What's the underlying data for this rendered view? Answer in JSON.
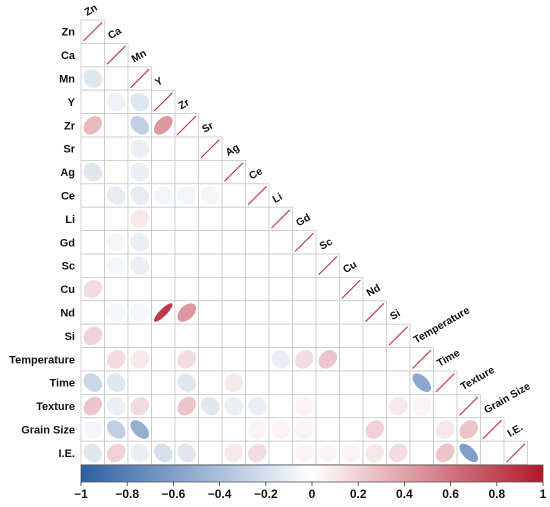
{
  "chart_data": {
    "type": "heatmap",
    "subtype": "correlation-ellipse-lower-triangle",
    "variables": [
      "Zn",
      "Ca",
      "Mn",
      "Y",
      "Zr",
      "Sr",
      "Ag",
      "Ce",
      "Li",
      "Gd",
      "Sc",
      "Cu",
      "Nd",
      "Si",
      "Temperature",
      "Time",
      "Texture",
      "Grain Size",
      "I.E."
    ],
    "diagonal_value": 1,
    "lower_triangle": [
      [],
      [
        0.0
      ],
      [
        -0.15,
        0.0
      ],
      [
        0.0,
        -0.08,
        -0.15
      ],
      [
        0.3,
        0.0,
        -0.3,
        0.45
      ],
      [
        0.0,
        0.0,
        -0.1,
        0.0,
        0.0
      ],
      [
        -0.15,
        0.0,
        -0.1,
        0.0,
        0.0,
        0.0
      ],
      [
        0.0,
        -0.12,
        -0.12,
        -0.05,
        -0.05,
        -0.05,
        0.0
      ],
      [
        0.0,
        0.0,
        0.1,
        0.0,
        0.0,
        0.0,
        0.0,
        0.0
      ],
      [
        0.0,
        -0.05,
        -0.1,
        0.0,
        0.0,
        0.0,
        0.0,
        0.0,
        0.0
      ],
      [
        0.0,
        -0.05,
        -0.1,
        0.0,
        0.0,
        0.0,
        0.0,
        0.0,
        0.0,
        0.0
      ],
      [
        0.15,
        0.0,
        0.0,
        0.0,
        0.0,
        0.0,
        0.0,
        0.0,
        0.0,
        0.0,
        0.0
      ],
      [
        0.0,
        -0.05,
        -0.05,
        0.85,
        0.45,
        0.0,
        0.0,
        0.0,
        0.0,
        0.0,
        0.0,
        0.0
      ],
      [
        0.2,
        0.0,
        0.0,
        0.0,
        0.0,
        0.0,
        0.0,
        0.0,
        0.0,
        0.0,
        0.0,
        0.0,
        0.0
      ],
      [
        0.0,
        0.15,
        0.1,
        0.0,
        0.15,
        0.0,
        0.0,
        0.0,
        -0.1,
        0.15,
        0.25,
        0.0,
        0.0,
        0.0
      ],
      [
        -0.25,
        -0.15,
        0.0,
        0.0,
        -0.15,
        0.0,
        0.1,
        0.0,
        0.0,
        0.0,
        0.0,
        0.0,
        0.0,
        0.0,
        -0.55
      ],
      [
        0.25,
        -0.1,
        0.15,
        0.0,
        0.25,
        -0.15,
        -0.1,
        -0.1,
        0.0,
        0.05,
        0.0,
        0.0,
        0.0,
        0.1,
        0.05,
        0.0
      ],
      [
        -0.05,
        -0.3,
        -0.5,
        0.0,
        0.0,
        0.0,
        0.0,
        0.05,
        0.05,
        0.05,
        0.0,
        0.0,
        0.2,
        0.0,
        0.0,
        0.1,
        0.25
      ],
      [
        -0.15,
        0.2,
        -0.1,
        -0.2,
        -0.15,
        0.0,
        0.1,
        0.15,
        0.0,
        0.05,
        0.05,
        0.05,
        0.1,
        0.15,
        0.0,
        0.25,
        -0.6,
        0.0
      ]
    ],
    "colorbar": {
      "min": -1,
      "max": 1,
      "ticks": [
        -1,
        -0.8,
        -0.6,
        -0.4,
        -0.2,
        0,
        0.2,
        0.4,
        0.6,
        0.8,
        1
      ],
      "tick_labels": [
        "−1",
        "−0.8",
        "−0.6",
        "−0.4",
        "−0.2",
        "0",
        "0.2",
        "0.4",
        "0.6",
        "0.8",
        "1"
      ],
      "low_color": "#2c5fa3",
      "mid_color": "#ffffff",
      "high_color": "#b2182b"
    },
    "grid_color": "#c8c8c8",
    "diagonal_line_color": "#c2323a"
  }
}
